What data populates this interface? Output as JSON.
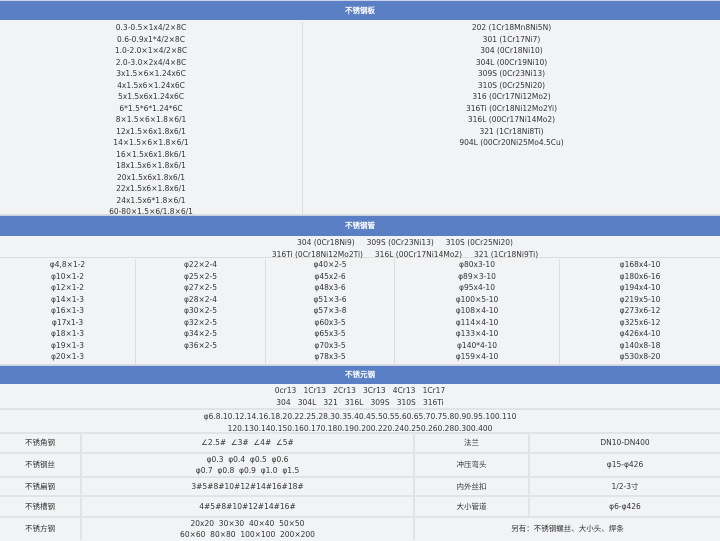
{
  "plate": {
    "title": "不锈钢板",
    "sizes": [
      "0.3-0.5×1x4/2×8C",
      "0.6-0.9x1*4/2×8C",
      "1.0-2.0×1×4/2×8C",
      "2.0-3.0×2x4/4×8C",
      "3x1.5×6×1.24x6C",
      "4x1.5x6×1.24x6C",
      "5x1.5x6x1.24x6C",
      "6*1.5*6*1.24*6C",
      "8×1.5×6×1.8×6/1",
      "12x1.5×6x1.8x6/1",
      "14×1.5×6×1.8×6/1",
      "16×1.5x6x1.8k6/1",
      "18x1.5x6×1.8x6/1",
      "20x1.5x6x1.8x6/1",
      "22x1.5x6×1.8x6/1",
      "24x1.5x6*1.8×6/1",
      "60-80×1.5×6/1.8×6/1"
    ],
    "grades": [
      "202 (1Cr18Mn8Ni5N)",
      "301 (1Cr17Ni7)",
      "304 (0Cr18Ni10)",
      "304L (00Cr19Ni10)",
      "309S (0Cr23Ni13)",
      "310S (0Cr25Ni20)",
      "316 (0Cr17Ni12Mo2)",
      "316Ti (0Cr18Ni12Mo2Yi)",
      "316L (00Cr17Ni14Mo2)",
      "321 (1Cr18Ni8Ti)",
      "904L (00Cr20Ni25Mo4.5Cu)"
    ]
  },
  "pipe": {
    "title": "不锈钢管",
    "grades": [
      "304 (0Cr18Ni9)     309S (0Cr23Ni13)     310S (0Cr25Ni20)",
      "316Ti (0Cr18Ni12Mo2Ti)     316L (00Cr17Ni14Mo2)     321 (1Cr18Ni9Ti)"
    ],
    "columns": [
      [
        "φ4,8×1-2",
        "φ10×1-2",
        "φ12×1-2",
        "φ14×1-3",
        "φ16×1-3",
        "φ17x1-3",
        "φ18×1-3",
        "φ19×1-3",
        "φ20×1-3"
      ],
      [
        "φ22×2-4",
        "φ25×2-5",
        "φ27×2-5",
        "φ28×2-4",
        "φ30×2-5",
        "φ32×2-5",
        "φ34×2-5",
        "φ36×2-5"
      ],
      [
        "φ40×2-5",
        "φ45x2-6",
        "φ48x3-6",
        "φ51×3-6",
        "φ57×3-8",
        "φ60x3-5",
        "φ65x3-5",
        "φ70x3-5",
        "φ78x3-5"
      ],
      [
        "φ80x3-10",
        "φ89×3-10",
        "φ95x4-10",
        "φ100×5-10",
        "φ108×4-10",
        "φ114×4-10",
        "φ133×4-10",
        "φ140*4-10",
        "φ159×4-10"
      ],
      [
        "φ168x4-10",
        "φ180x6-16",
        "φ194x4-10",
        "φ219x5-10",
        "φ273x6-12",
        "φ325x6-12",
        "φ426x4-10",
        "φ140x8-18",
        "φ530x8-20"
      ]
    ]
  },
  "bar": {
    "title": "不锈元钢",
    "grades": [
      "0cr13   1Cr13   2Cr13   3Cr13   4Cr13   1Cr17",
      "304   304L   321   316L   309S   310S   316Ti"
    ],
    "sizes": [
      "φ6.8.10.12.14.16.18.20.22.25.28.30.35.40.45.50.55.60.65.70.75.80.90.95.100.110",
      "120.130.140.150.160.170.180.190.200.220.240.250.260.280.300.400"
    ]
  },
  "others": [
    {
      "label": "不锈角钢",
      "value": [
        "∠2.5#  ∠3#  ∠4#  ∠5#"
      ],
      "label2": "法兰",
      "value2": "DN10-DN400"
    },
    {
      "label": "不锈钢丝",
      "value": [
        "φ0.3  φ0.4  φ0.5  φ0.6",
        "φ0.7  φ0.8  φ0.9  φ1.0  φ1.5"
      ],
      "label2": "冲压弯头",
      "value2": "φ15-φ426"
    },
    {
      "label": "不锈扁钢",
      "value": [
        "3#5#8#10#12#14#16#18#"
      ],
      "label2": "内外丝扣",
      "value2": "1/2-3寸"
    },
    {
      "label": "不锈槽钢",
      "value": [
        "4#5#8#10#12#14#16#"
      ],
      "label2": "大小管道",
      "value2": "φ6-φ426"
    },
    {
      "label": "不锈方钢",
      "value": [
        "20x20  30×30  40×40  50×50",
        "60×60  80×80  100×100  200×200"
      ],
      "note": "另有：不锈钢螺丝、大小头、焊条"
    }
  ]
}
